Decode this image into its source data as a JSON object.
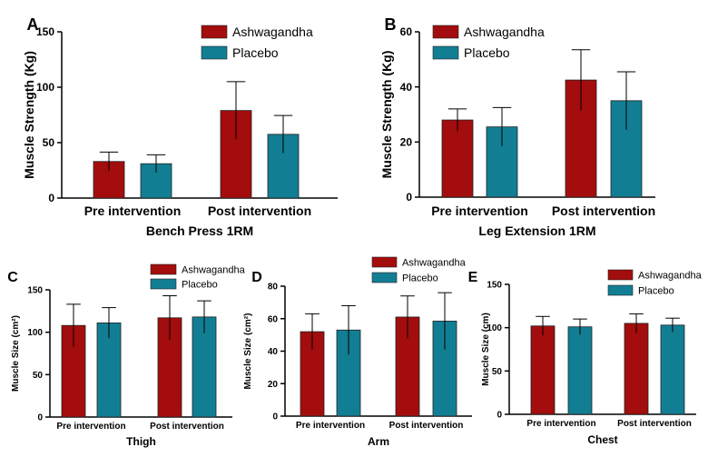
{
  "colors": {
    "ashwagandha": "#a30d0d",
    "placebo": "#127e93",
    "axis": "#000000",
    "errorbar": "#000000"
  },
  "chart_data": [
    {
      "panel": "A",
      "type": "bar",
      "categories": [
        "Pre intervention",
        "Post intervention"
      ],
      "series": [
        {
          "name": "Ashwagandha",
          "values": [
            33,
            79
          ],
          "errors": [
            8.5,
            26
          ]
        },
        {
          "name": "Placebo",
          "values": [
            31,
            57.5
          ],
          "errors": [
            8,
            17
          ]
        }
      ],
      "title": "Bench Press 1RM",
      "xlabel": "Bench Press 1RM",
      "ylabel": "Muscle Strength (Kg)",
      "ylim": [
        0,
        150
      ],
      "yticks": [
        "0",
        "50",
        "100",
        "150"
      ],
      "grid": false,
      "legend_position": "top-right"
    },
    {
      "panel": "B",
      "type": "bar",
      "categories": [
        "Pre intervention",
        "Post intervention"
      ],
      "series": [
        {
          "name": "Ashwagandha",
          "values": [
            28,
            42.5
          ],
          "errors": [
            4,
            11
          ]
        },
        {
          "name": "Placebo",
          "values": [
            25.5,
            35
          ],
          "errors": [
            7,
            10.5
          ]
        }
      ],
      "title": "Leg Extension 1RM",
      "xlabel": "Leg Extension 1RM",
      "ylabel": "Muscle Strength (Kg)",
      "ylim": [
        0,
        60
      ],
      "yticks": [
        "0",
        "20",
        "40",
        "60"
      ],
      "grid": false,
      "legend_position": "top-left"
    },
    {
      "panel": "C",
      "type": "bar",
      "categories": [
        "Pre intervention",
        "Post intervention"
      ],
      "series": [
        {
          "name": "Ashwagandha",
          "values": [
            108,
            117
          ],
          "errors": [
            25,
            26
          ]
        },
        {
          "name": "Placebo",
          "values": [
            111,
            118
          ],
          "errors": [
            18,
            19
          ]
        }
      ],
      "title": "Thigh",
      "xlabel": "Thigh",
      "ylabel": "Muscle Size (cm²)",
      "ylim": [
        0,
        150
      ],
      "yticks": [
        "0",
        "50",
        "100",
        "150"
      ],
      "grid": false,
      "legend_position": "top-right"
    },
    {
      "panel": "D",
      "type": "bar",
      "categories": [
        "Pre intervention",
        "Post intervention"
      ],
      "series": [
        {
          "name": "Ashwagandha",
          "values": [
            52,
            61
          ],
          "errors": [
            11,
            13
          ]
        },
        {
          "name": "Placebo",
          "values": [
            53,
            58.5
          ],
          "errors": [
            15,
            17.5
          ]
        }
      ],
      "title": "Arm",
      "xlabel": "Arm",
      "ylabel": "Muscle Size (cm²)",
      "ylim": [
        0,
        80
      ],
      "yticks": [
        "0",
        "20",
        "40",
        "60",
        "80"
      ],
      "grid": false,
      "legend_position": "top-right"
    },
    {
      "panel": "E",
      "type": "bar",
      "categories": [
        "Pre intervention",
        "Post intervention"
      ],
      "series": [
        {
          "name": "Ashwagandha",
          "values": [
            102,
            105
          ],
          "errors": [
            11,
            11
          ]
        },
        {
          "name": "Placebo",
          "values": [
            101,
            103
          ],
          "errors": [
            9,
            8
          ]
        }
      ],
      "title": "Chest",
      "xlabel": "Chest",
      "ylabel": "Muscle Size (cm)",
      "ylim": [
        0,
        150
      ],
      "yticks": [
        "0",
        "50",
        "100",
        "150"
      ],
      "grid": false,
      "legend_position": "top-right"
    }
  ]
}
